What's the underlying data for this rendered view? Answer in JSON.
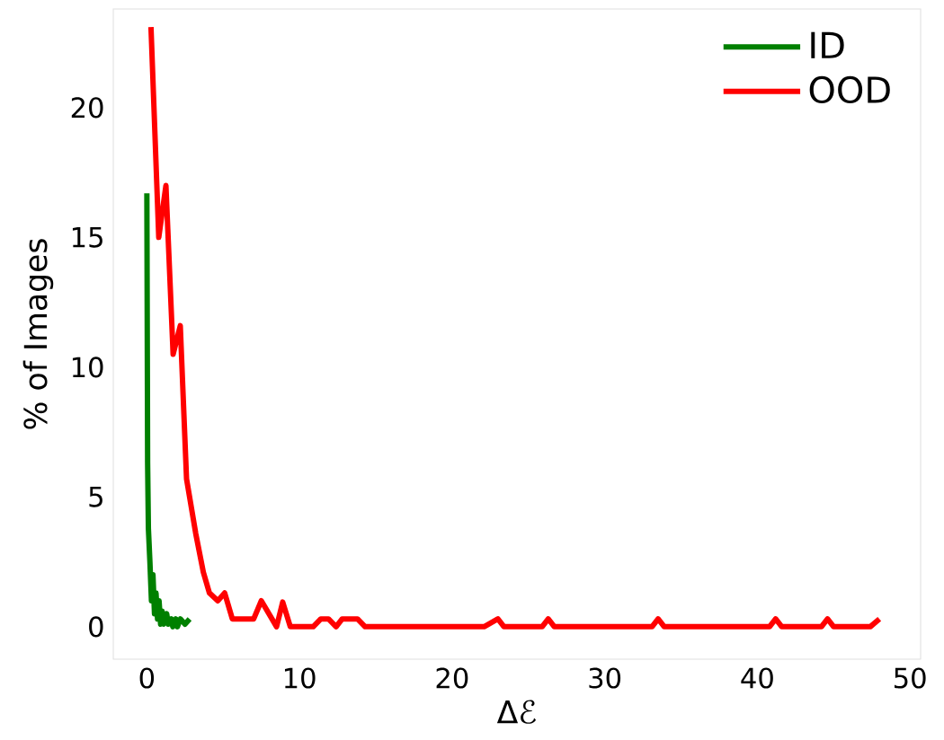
{
  "chart_data": {
    "type": "line",
    "xlabel": "Δℰ",
    "ylabel": "% of Images",
    "xlim": [
      -2.2,
      50.7
    ],
    "ylim": [
      -1.25,
      23.8
    ],
    "xticks": [
      0,
      10,
      20,
      30,
      40,
      50
    ],
    "yticks": [
      0,
      5,
      10,
      15,
      20
    ],
    "legend": "top right",
    "grid": false,
    "marker": "none",
    "line_style": "solid",
    "series": [
      {
        "name": "ID",
        "color": "#008000",
        "x": [
          0,
          0.05,
          0.1,
          0.2,
          0.3,
          0.4,
          0.5,
          0.6,
          0.7,
          0.8,
          0.9,
          1.0,
          1.1,
          1.3,
          1.4,
          1.6,
          1.7,
          1.9,
          2.0,
          2.2,
          2.5,
          2.8
        ],
        "values": [
          16.7,
          6.3,
          3.8,
          2.5,
          1.0,
          2.0,
          0.5,
          1.3,
          0.3,
          1.0,
          0.1,
          0.6,
          0.1,
          0.5,
          0.1,
          0.3,
          0.0,
          0.3,
          0.0,
          0.3,
          0.1,
          0.3
        ]
      },
      {
        "name": "OOD",
        "color": "#ff0000",
        "x": [
          0.27,
          0.78,
          1.25,
          1.72,
          2.19,
          2.6,
          3.2,
          3.7,
          4.1,
          4.65,
          5.1,
          5.6,
          7.0,
          7.5,
          8.5,
          8.9,
          9.4,
          10.9,
          11.4,
          11.9,
          12.4,
          12.8,
          13.8,
          14.3,
          22.1,
          23.0,
          23.4,
          25.9,
          26.3,
          26.7,
          33.1,
          33.5,
          33.9,
          40.8,
          41.2,
          41.6,
          44.2,
          44.6,
          45.0,
          47.4,
          48.0
        ],
        "values": [
          23.1,
          15.0,
          17.0,
          10.5,
          11.6,
          5.7,
          3.6,
          2.1,
          1.3,
          1.0,
          1.3,
          0.3,
          0.3,
          1.0,
          0.0,
          0.95,
          0.0,
          0.0,
          0.3,
          0.3,
          0.0,
          0.3,
          0.3,
          0.0,
          0.0,
          0.3,
          0.0,
          0.0,
          0.3,
          0.0,
          0.0,
          0.3,
          0.0,
          0.0,
          0.3,
          0.0,
          0.0,
          0.3,
          0.0,
          0.0,
          0.3
        ]
      }
    ]
  }
}
